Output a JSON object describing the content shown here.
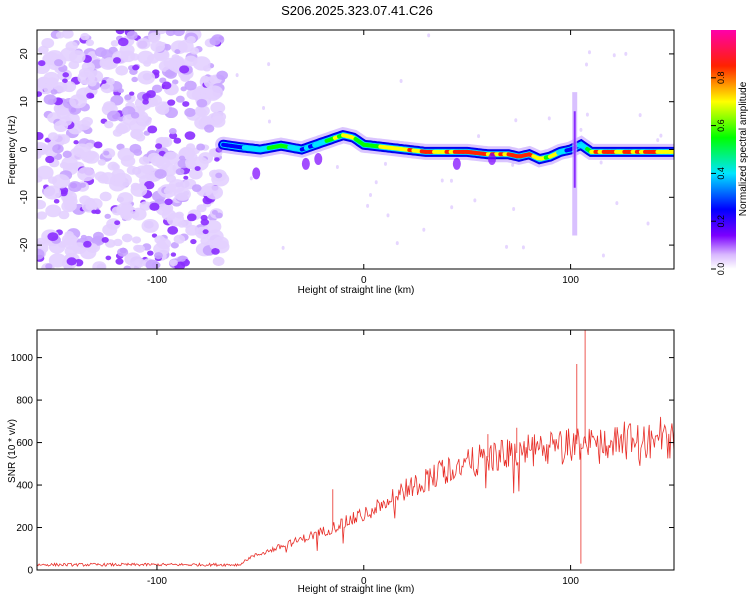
{
  "title": "S206.2025.323.07.41.C26",
  "chart_data": [
    {
      "type": "heatmap",
      "xlabel": "Height of straight line (km)",
      "ylabel": "Frequency (Hz)",
      "xlim": [
        -158,
        150
      ],
      "ylim": [
        -25,
        25
      ],
      "xticks": [
        -100,
        0,
        100
      ],
      "yticks": [
        -20,
        -10,
        0,
        10,
        20
      ],
      "colorbar": {
        "label": "Normalized spectral amplitude",
        "range": [
          0,
          1
        ],
        "ticks": [
          0,
          0.2,
          0.4,
          0.6,
          0.8
        ],
        "colors": [
          "#ffffff",
          "#7b00ff",
          "#0000ff",
          "#00e5ff",
          "#00ff00",
          "#ffff00",
          "#ff0000",
          "#ff00aa"
        ]
      },
      "noise_region_x": [
        -158,
        -68
      ],
      "ridge": {
        "x": [
          -68,
          -60,
          -50,
          -40,
          -30,
          -20,
          -10,
          -5,
          0,
          10,
          20,
          30,
          40,
          50,
          60,
          70,
          75,
          80,
          85,
          90,
          95,
          100,
          105,
          110,
          120,
          130,
          140,
          150
        ],
        "frequency": [
          1,
          0.5,
          0,
          0.8,
          0,
          1.5,
          3,
          2.5,
          1,
          0.5,
          0,
          -0.5,
          -0.5,
          -0.5,
          -1,
          -1,
          -1.5,
          -1,
          -2,
          -1.5,
          -0.5,
          0,
          1,
          -0.5,
          -0.5,
          -0.5,
          -0.5,
          -0.5
        ],
        "amplitude": [
          0.3,
          0.35,
          0.45,
          0.6,
          0.35,
          0.55,
          0.7,
          0.65,
          0.6,
          0.75,
          0.85,
          0.8,
          0.9,
          0.9,
          0.9,
          0.85,
          0.9,
          0.85,
          0.75,
          0.8,
          0.5,
          0.3,
          0.4,
          0.8,
          0.9,
          0.9,
          0.9,
          0.85
        ]
      }
    },
    {
      "type": "line",
      "xlabel": "Height of straight line (km)",
      "ylabel": "SNR (10 * v/v)",
      "xlim": [
        -158,
        150
      ],
      "ylim": [
        0,
        1130
      ],
      "xticks": [
        -100,
        0,
        100
      ],
      "yticks": [
        0,
        200,
        400,
        600,
        800,
        1000
      ],
      "color": "#e8302a",
      "trend": {
        "x": [
          -158,
          -60,
          -55,
          -40,
          -20,
          0,
          20,
          40,
          60,
          80,
          95,
          100,
          110,
          130,
          150
        ],
        "y": [
          25,
          25,
          60,
          110,
          180,
          260,
          380,
          470,
          530,
          560,
          580,
          590,
          600,
          605,
          610
        ]
      },
      "spikes": [
        {
          "x": -15,
          "y": 380
        },
        {
          "x": 60,
          "y": 640
        },
        {
          "x": 74,
          "y": 670
        },
        {
          "x": 103,
          "y": 970
        },
        {
          "x": 105,
          "y": 30
        },
        {
          "x": 107,
          "y": 1130
        }
      ]
    }
  ]
}
